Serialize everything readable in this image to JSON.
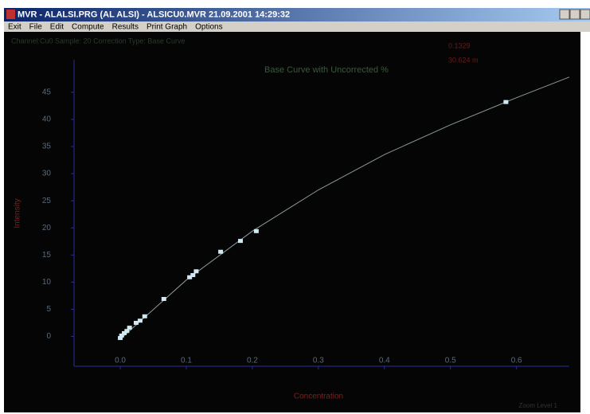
{
  "window": {
    "title": "MVR - ALALSI.PRG (AL ALSI) - ALSICU0.MVR 21.09.2001 14:29:32",
    "menu": [
      "Exit",
      "File",
      "Edit",
      "Compute",
      "Results",
      "Print Graph",
      "Options"
    ],
    "status": "Channel:Cu0  Sample: 20 Correction Type: Base Curve",
    "readout": [
      "0.1329",
      "30.624 m"
    ],
    "zoom": "Zoom Level 1"
  },
  "chart_data": {
    "type": "scatter",
    "title": "Base Curve with Uncorrected %",
    "x_label": "Concentration",
    "y_label": "Intensity",
    "xlim": [
      -0.07,
      0.68
    ],
    "ylim": [
      -5.5,
      51
    ],
    "xticks": [
      {
        "value": 0,
        "label": "0.0"
      },
      0.1,
      0.2,
      0.3,
      0.4,
      0.5,
      0.6
    ],
    "yticks": [
      0,
      5,
      10,
      15,
      20,
      25,
      30,
      35,
      40,
      45
    ],
    "series": [
      {
        "mode": "lines",
        "color": "#8a9a9a",
        "x": [
          0,
          0.1,
          0.2,
          0.3,
          0.4,
          0.5,
          0.6,
          0.68
        ],
        "values": [
          -0.5,
          10.4,
          19.4,
          27,
          33.5,
          39,
          44,
          47.8
        ]
      },
      {
        "mode": "markers",
        "color": "#cfe8f2",
        "x": [
          0,
          0.002,
          0.006,
          0.01,
          0.014,
          0.024,
          0.03,
          0.037,
          0.066,
          0.105,
          0.11,
          0.115,
          0.152,
          0.182,
          0.206,
          0.584
        ],
        "values": [
          -0.3,
          0.15,
          0.6,
          1.0,
          1.6,
          2.5,
          2.9,
          3.7,
          6.9,
          10.9,
          11.3,
          12.0,
          15.6,
          17.6,
          19.4,
          43.2
        ]
      }
    ]
  }
}
